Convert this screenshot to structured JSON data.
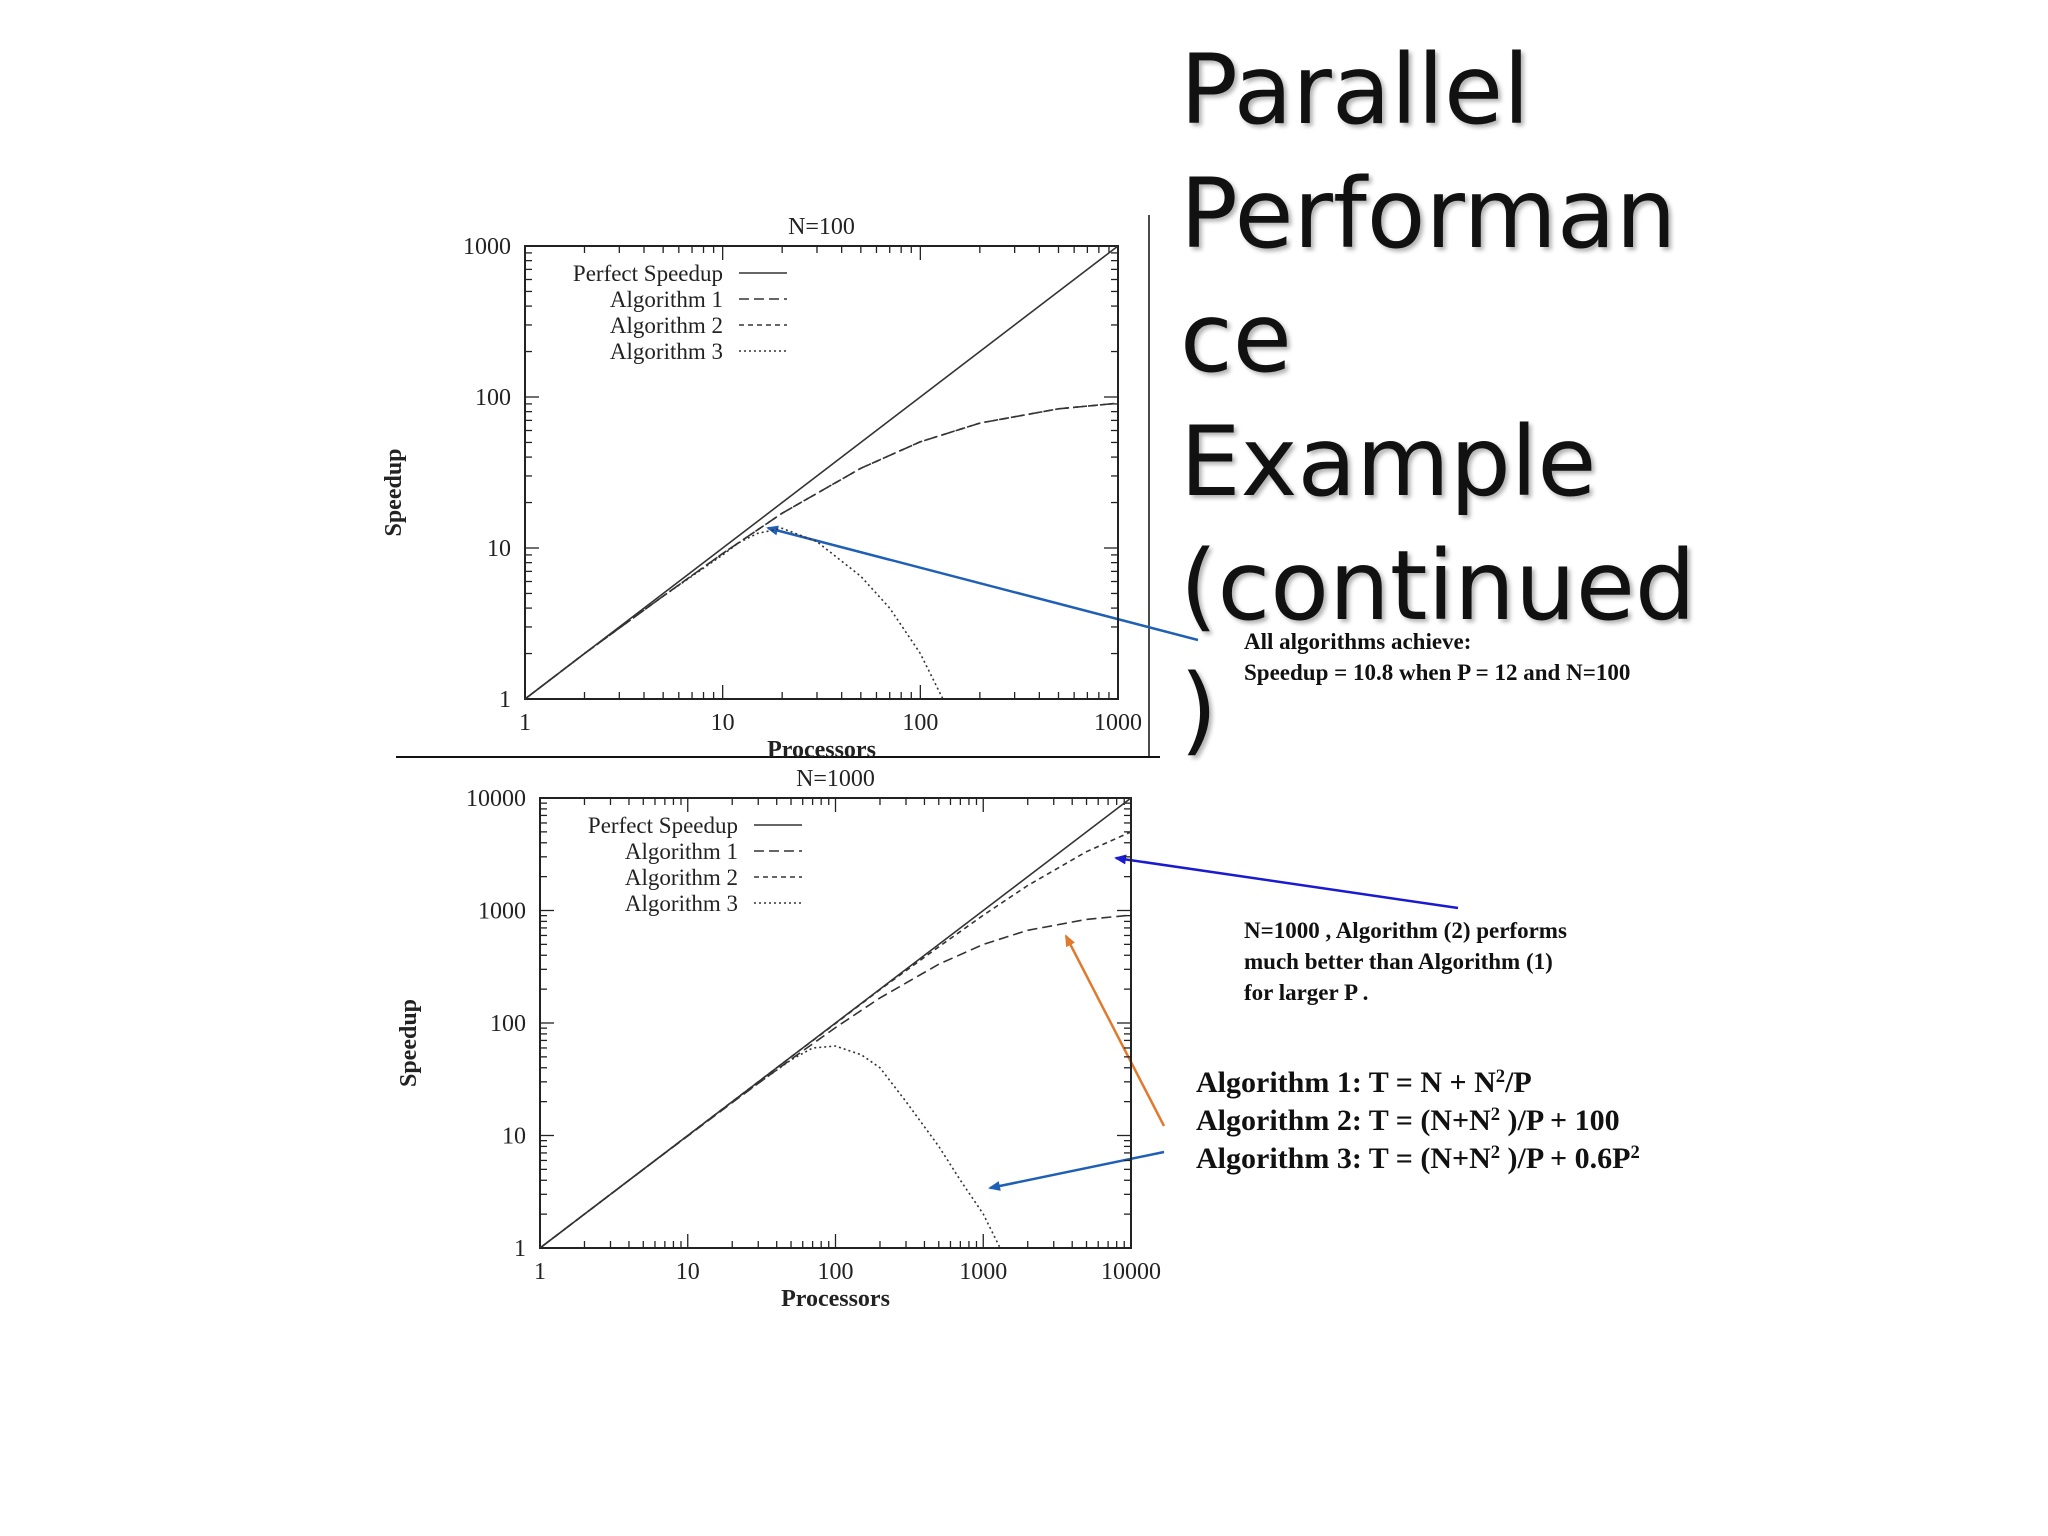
{
  "slide": {
    "title_lines": [
      "Parallel",
      "Performan",
      "ce",
      "Example",
      "(continued",
      ")"
    ],
    "note_top": [
      "All algorithms achieve:",
      "Speedup = 10.8  when  P = 12 and N=100"
    ],
    "note_mid": [
      "N=1000 , Algorithm (2)   performs",
      "much better than Algorithm (1)",
      "for larger P ."
    ],
    "formulas": [
      {
        "label": "Algorithm 1: T =  N + N",
        "sup1": "2",
        "rest1": "/P",
        "rest2": "",
        "sup2": ""
      },
      {
        "label": "Algorithm 2: T =  (N+N",
        "sup1": "2",
        "rest1": " )/P  + 100",
        "rest2": "",
        "sup2": ""
      },
      {
        "label": "Algorithm 3: T  =  (N+N",
        "sup1": "2",
        "rest1": " )/P   +   0.6P",
        "rest2": "",
        "sup2": "2"
      }
    ],
    "colors": {
      "arrow_blue": "#1f5fb5",
      "arrow_navy": "#1a1ad0",
      "arrow_orange": "#e07a2e",
      "curve": "#333333"
    }
  },
  "chart_data": [
    {
      "type": "line",
      "title": "N=100",
      "xlabel": "Processors",
      "ylabel": "Speedup",
      "xscale": "log",
      "yscale": "log",
      "xlim": [
        1,
        1000
      ],
      "ylim": [
        1,
        1000
      ],
      "xticks": [
        "1",
        "10",
        "100",
        "1000"
      ],
      "yticks": [
        "1",
        "10",
        "100",
        "1000"
      ],
      "legend_position": "top-left",
      "N": 100,
      "series": [
        {
          "name": "Perfect Speedup",
          "style": "solid",
          "x": [
            1,
            10,
            100,
            1000
          ],
          "y": [
            1,
            10,
            100,
            1000
          ]
        },
        {
          "name": "Algorithm 1",
          "style": "dashed",
          "x": [
            1,
            2,
            5,
            10,
            20,
            50,
            100,
            200,
            500,
            1000
          ],
          "y": [
            1.0,
            2.0,
            4.8,
            9.2,
            17.0,
            33.7,
            50.5,
            67.2,
            83.5,
            91.0
          ]
        },
        {
          "name": "Algorithm 2",
          "style": "dashed-fine",
          "x": [
            1,
            2,
            5,
            10,
            20,
            50,
            100,
            200,
            500,
            1000
          ],
          "y": [
            1.0,
            2.0,
            4.8,
            9.2,
            17.0,
            33.7,
            50.5,
            67.2,
            83.5,
            91.0
          ]
        },
        {
          "name": "Algorithm 3",
          "style": "dotted",
          "x": [
            1,
            2,
            5,
            10,
            12,
            15,
            20,
            30,
            50,
            70,
            100,
            130
          ],
          "y": [
            1.0,
            2.0,
            4.8,
            9.0,
            10.8,
            12.5,
            13.5,
            11.0,
            6.5,
            4.0,
            2.0,
            1.0
          ]
        }
      ]
    },
    {
      "type": "line",
      "title": "N=1000",
      "xlabel": "Processors",
      "ylabel": "Speedup",
      "xscale": "log",
      "yscale": "log",
      "xlim": [
        1,
        10000
      ],
      "ylim": [
        1,
        10000
      ],
      "xticks": [
        "1",
        "10",
        "100",
        "1000",
        "10000"
      ],
      "yticks": [
        "1",
        "10",
        "100",
        "1000",
        "10000"
      ],
      "legend_position": "top-left",
      "N": 1000,
      "series": [
        {
          "name": "Perfect Speedup",
          "style": "solid",
          "x": [
            1,
            10,
            100,
            1000,
            10000
          ],
          "y": [
            1,
            10,
            100,
            1000,
            10000
          ]
        },
        {
          "name": "Algorithm 1",
          "style": "dashed",
          "x": [
            1,
            2,
            5,
            10,
            20,
            50,
            100,
            200,
            500,
            1000,
            2000,
            5000,
            10000
          ],
          "y": [
            1.0,
            2.0,
            5.0,
            9.9,
            19.6,
            47.6,
            91.0,
            167.0,
            333.0,
            500.0,
            667.0,
            833.0,
            910.0
          ]
        },
        {
          "name": "Algorithm 2",
          "style": "dashed-fine",
          "x": [
            1,
            2,
            5,
            10,
            20,
            50,
            100,
            200,
            500,
            1000,
            2000,
            5000,
            10000
          ],
          "y": [
            1.0,
            2.0,
            5.0,
            10.0,
            20.0,
            50.0,
            99.0,
            198.0,
            476.0,
            909.0,
            1667.0,
            3333.0,
            5000.0
          ]
        },
        {
          "name": "Algorithm 3",
          "style": "dotted",
          "x": [
            1,
            2,
            5,
            10,
            20,
            50,
            70,
            100,
            150,
            200,
            300,
            500,
            700,
            1000,
            1300
          ],
          "y": [
            1.0,
            2.0,
            5.0,
            10.0,
            19.9,
            47.0,
            60.0,
            62.5,
            52.0,
            40.0,
            20.0,
            8.0,
            4.0,
            2.0,
            1.0
          ]
        }
      ]
    }
  ]
}
